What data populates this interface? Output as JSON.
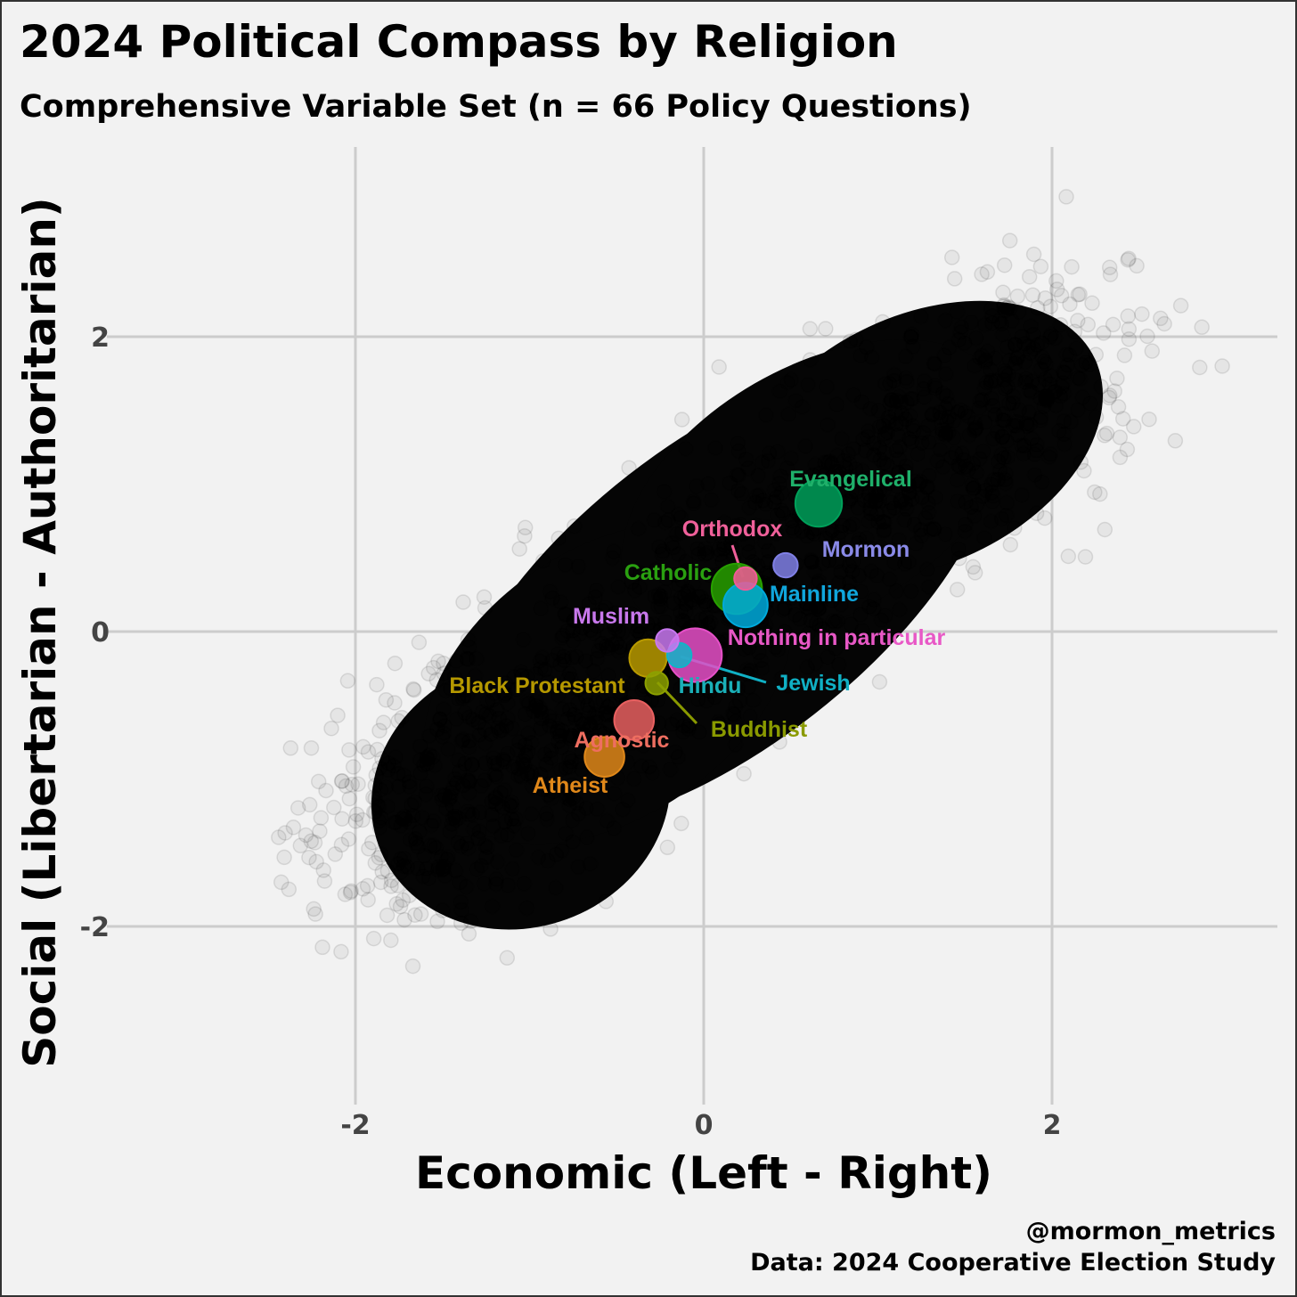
{
  "chart_data": {
    "type": "scatter",
    "title": "2024 Political Compass by Religion",
    "subtitle": "Comprehensive Variable Set (n = 66 Policy Questions)",
    "xlabel": "Economic (Left - Right)",
    "ylabel": "Social (Libertarian - Authoritarian)",
    "xlim": [
      -3.0,
      3.3
    ],
    "ylim": [
      -3.3,
      3.3
    ],
    "x_ticks": [
      -2,
      0,
      2
    ],
    "x_tick_labels": [
      "-2",
      "0",
      "2"
    ],
    "y_ticks": [
      -2,
      0,
      2
    ],
    "y_tick_labels": [
      "-2",
      "0",
      "2"
    ],
    "grid": true,
    "legend": "none",
    "individual_points_note": "approx. 50,000 individual respondents shown as semi-transparent black points, concentrated along the diagonal from (-1.3, -1.3) to (1.3, 1.6)",
    "series": [
      {
        "name": "Evangelical",
        "x": 0.66,
        "y": 0.87,
        "relative_size": 0.7,
        "color": "#00a05a"
      },
      {
        "name": "Orthodox",
        "x": 0.24,
        "y": 0.36,
        "relative_size": 0.18,
        "color": "#f05a96"
      },
      {
        "name": "Mormon",
        "x": 0.47,
        "y": 0.45,
        "relative_size": 0.22,
        "color": "#8080e6"
      },
      {
        "name": "Catholic",
        "x": 0.19,
        "y": 0.29,
        "relative_size": 0.78,
        "color": "#28a000"
      },
      {
        "name": "Mainline",
        "x": 0.24,
        "y": 0.18,
        "relative_size": 0.65,
        "color": "#00aadc"
      },
      {
        "name": "Muslim",
        "x": -0.21,
        "y": -0.06,
        "relative_size": 0.18,
        "color": "#c878f0"
      },
      {
        "name": "Nothing in particular",
        "x": -0.05,
        "y": -0.16,
        "relative_size": 0.85,
        "color": "#e650c8"
      },
      {
        "name": "Jewish",
        "x": -0.14,
        "y": -0.16,
        "relative_size": 0.22,
        "color": "#10b4c8"
      },
      {
        "name": "Black Protestant",
        "x": -0.32,
        "y": -0.18,
        "relative_size": 0.5,
        "color": "#b99a00"
      },
      {
        "name": "Hindu",
        "x": -0.27,
        "y": -0.35,
        "relative_size": 0.18,
        "color": "#8ca000"
      },
      {
        "name": "Buddhist",
        "x": -0.27,
        "y": -0.35,
        "relative_size": 0.18,
        "color": "#8ca000"
      },
      {
        "name": "Agnostic",
        "x": -0.4,
        "y": -0.6,
        "relative_size": 0.55,
        "color": "#e86060"
      },
      {
        "name": "Atheist",
        "x": -0.57,
        "y": -0.85,
        "relative_size": 0.55,
        "color": "#e0881a"
      }
    ],
    "annotations": [
      {
        "text": "Evangelical",
        "color": "#1fb06a"
      },
      {
        "text": "Orthodox",
        "color": "#f0609a"
      },
      {
        "text": "Mormon",
        "color": "#8a8ae8"
      },
      {
        "text": "Catholic",
        "color": "#2aa010"
      },
      {
        "text": "Mainline",
        "color": "#10a6dc"
      },
      {
        "text": "Muslim",
        "color": "#c878ec"
      },
      {
        "text": "Nothing in particular",
        "color": "#e858c6"
      },
      {
        "text": "Jewish",
        "color": "#10b0c4"
      },
      {
        "text": "Black Protestant",
        "color": "#b59800"
      },
      {
        "text": "Hindu",
        "color": "#1ab0b8"
      },
      {
        "text": "Buddhist",
        "color": "#8a9a00"
      },
      {
        "text": "Agnostic",
        "color": "#ee6e60"
      },
      {
        "text": "Atheist",
        "color": "#e0881a"
      }
    ]
  },
  "caption": {
    "line1": "@mormon_metrics",
    "line2": "Data: 2024 Cooperative Election Study"
  }
}
